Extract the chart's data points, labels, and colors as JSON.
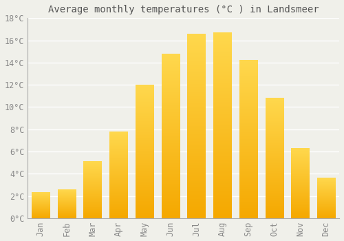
{
  "title": "Average monthly temperatures (°C ) in Landsmeer",
  "months": [
    "Jan",
    "Feb",
    "Mar",
    "Apr",
    "May",
    "Jun",
    "Jul",
    "Aug",
    "Sep",
    "Oct",
    "Nov",
    "Dec"
  ],
  "values": [
    2.3,
    2.6,
    5.1,
    7.8,
    12.0,
    14.8,
    16.6,
    16.7,
    14.2,
    10.8,
    6.3,
    3.6
  ],
  "bar_color_bottom": "#F5A800",
  "bar_color_top": "#FFD84D",
  "ylim": [
    0,
    18
  ],
  "yticks": [
    0,
    2,
    4,
    6,
    8,
    10,
    12,
    14,
    16,
    18
  ],
  "ytick_labels": [
    "0°C",
    "2°C",
    "4°C",
    "6°C",
    "8°C",
    "10°C",
    "12°C",
    "14°C",
    "16°C",
    "18°C"
  ],
  "background_color": "#f0f0ea",
  "grid_color": "#ffffff",
  "title_fontsize": 10,
  "tick_fontsize": 8.5,
  "bar_width": 0.7
}
